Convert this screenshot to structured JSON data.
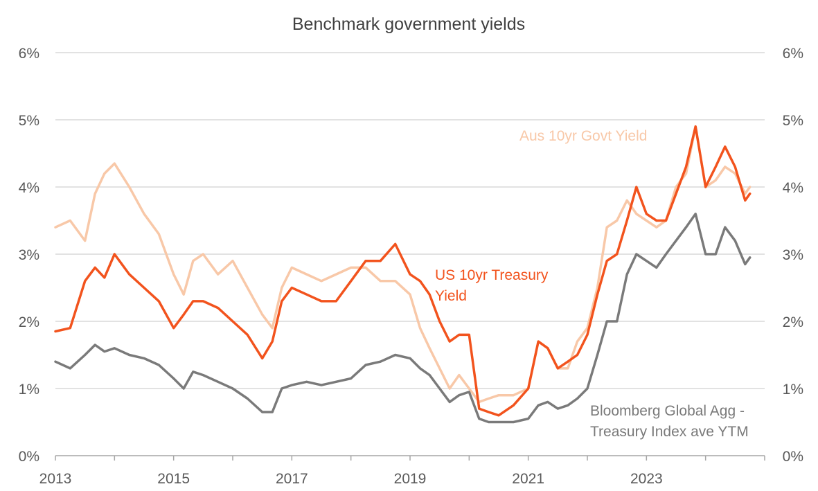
{
  "chart_data": {
    "type": "line",
    "title": "Benchmark government yields",
    "xlabel": "",
    "ylabel": "",
    "xlim": [
      2013,
      2025
    ],
    "ylim": [
      0,
      6
    ],
    "y_ticks": [
      "0%",
      "1%",
      "2%",
      "3%",
      "4%",
      "5%",
      "6%"
    ],
    "y_ticks_right": [
      "0%",
      "1%",
      "2%",
      "3%",
      "4%",
      "5%",
      "6%"
    ],
    "x_ticks": [
      "2013",
      "2015",
      "2017",
      "2019",
      "2021",
      "2023"
    ],
    "grid": true,
    "legend": "none",
    "colors": {
      "aus": "#F8C8A8",
      "us": "#F2531D",
      "global": "#7A7A7A",
      "grid": "#D9D9D9",
      "axis": "#A6A6A6"
    },
    "series": [
      {
        "name": "Aus 10yr Govt Yield",
        "x": [
          2013.0,
          2013.25,
          2013.5,
          2013.67,
          2013.83,
          2014.0,
          2014.25,
          2014.5,
          2014.75,
          2015.0,
          2015.17,
          2015.33,
          2015.5,
          2015.75,
          2016.0,
          2016.25,
          2016.5,
          2016.67,
          2016.83,
          2017.0,
          2017.25,
          2017.5,
          2017.75,
          2018.0,
          2018.25,
          2018.5,
          2018.75,
          2019.0,
          2019.17,
          2019.33,
          2019.5,
          2019.67,
          2019.83,
          2020.0,
          2020.17,
          2020.33,
          2020.5,
          2020.75,
          2021.0,
          2021.17,
          2021.33,
          2021.5,
          2021.67,
          2021.83,
          2022.0,
          2022.17,
          2022.33,
          2022.5,
          2022.67,
          2022.83,
          2023.0,
          2023.17,
          2023.33,
          2023.5,
          2023.67,
          2023.83,
          2024.0,
          2024.17,
          2024.33,
          2024.5,
          2024.67,
          2024.75
        ],
        "values": [
          3.4,
          3.5,
          3.2,
          3.9,
          4.2,
          4.35,
          4.0,
          3.6,
          3.3,
          2.7,
          2.4,
          2.9,
          3.0,
          2.7,
          2.9,
          2.5,
          2.1,
          1.9,
          2.5,
          2.8,
          2.7,
          2.6,
          2.7,
          2.8,
          2.8,
          2.6,
          2.6,
          2.4,
          1.9,
          1.6,
          1.3,
          1.0,
          1.2,
          1.0,
          0.8,
          0.85,
          0.9,
          0.9,
          1.0,
          1.7,
          1.6,
          1.3,
          1.3,
          1.7,
          1.9,
          2.5,
          3.4,
          3.5,
          3.8,
          3.6,
          3.5,
          3.4,
          3.5,
          4.0,
          4.2,
          4.9,
          4.0,
          4.1,
          4.3,
          4.2,
          3.9,
          4.0
        ]
      },
      {
        "name": "US 10yr Treasury Yield",
        "x": [
          2013.0,
          2013.25,
          2013.5,
          2013.67,
          2013.83,
          2014.0,
          2014.25,
          2014.5,
          2014.75,
          2015.0,
          2015.17,
          2015.33,
          2015.5,
          2015.75,
          2016.0,
          2016.25,
          2016.5,
          2016.67,
          2016.83,
          2017.0,
          2017.25,
          2017.5,
          2017.75,
          2018.0,
          2018.25,
          2018.5,
          2018.75,
          2019.0,
          2019.17,
          2019.33,
          2019.5,
          2019.67,
          2019.83,
          2020.0,
          2020.17,
          2020.33,
          2020.5,
          2020.75,
          2021.0,
          2021.17,
          2021.33,
          2021.5,
          2021.67,
          2021.83,
          2022.0,
          2022.17,
          2022.33,
          2022.5,
          2022.67,
          2022.83,
          2023.0,
          2023.17,
          2023.33,
          2023.5,
          2023.67,
          2023.83,
          2024.0,
          2024.17,
          2024.33,
          2024.5,
          2024.67,
          2024.75
        ],
        "values": [
          1.85,
          1.9,
          2.6,
          2.8,
          2.65,
          3.0,
          2.7,
          2.5,
          2.3,
          1.9,
          2.1,
          2.3,
          2.3,
          2.2,
          2.0,
          1.8,
          1.45,
          1.7,
          2.3,
          2.5,
          2.4,
          2.3,
          2.3,
          2.6,
          2.9,
          2.9,
          3.15,
          2.7,
          2.6,
          2.4,
          2.0,
          1.7,
          1.8,
          1.8,
          0.7,
          0.65,
          0.6,
          0.75,
          1.0,
          1.7,
          1.6,
          1.3,
          1.4,
          1.5,
          1.8,
          2.4,
          2.9,
          3.0,
          3.5,
          4.0,
          3.6,
          3.5,
          3.5,
          3.9,
          4.3,
          4.9,
          4.0,
          4.3,
          4.6,
          4.3,
          3.8,
          3.9
        ]
      },
      {
        "name": "Bloomberg Global Agg - Treasury Index ave YTM",
        "x": [
          2013.0,
          2013.25,
          2013.5,
          2013.67,
          2013.83,
          2014.0,
          2014.25,
          2014.5,
          2014.75,
          2015.0,
          2015.17,
          2015.33,
          2015.5,
          2015.75,
          2016.0,
          2016.25,
          2016.5,
          2016.67,
          2016.83,
          2017.0,
          2017.25,
          2017.5,
          2017.75,
          2018.0,
          2018.25,
          2018.5,
          2018.75,
          2019.0,
          2019.17,
          2019.33,
          2019.5,
          2019.67,
          2019.83,
          2020.0,
          2020.17,
          2020.33,
          2020.5,
          2020.75,
          2021.0,
          2021.17,
          2021.33,
          2021.5,
          2021.67,
          2021.83,
          2022.0,
          2022.17,
          2022.33,
          2022.5,
          2022.67,
          2022.83,
          2023.0,
          2023.17,
          2023.33,
          2023.5,
          2023.67,
          2023.83,
          2024.0,
          2024.17,
          2024.33,
          2024.5,
          2024.67,
          2024.75
        ],
        "values": [
          1.4,
          1.3,
          1.5,
          1.65,
          1.55,
          1.6,
          1.5,
          1.45,
          1.35,
          1.15,
          1.0,
          1.25,
          1.2,
          1.1,
          1.0,
          0.85,
          0.65,
          0.65,
          1.0,
          1.05,
          1.1,
          1.05,
          1.1,
          1.15,
          1.35,
          1.4,
          1.5,
          1.45,
          1.3,
          1.2,
          1.0,
          0.8,
          0.9,
          0.95,
          0.55,
          0.5,
          0.5,
          0.5,
          0.55,
          0.75,
          0.8,
          0.7,
          0.75,
          0.85,
          1.0,
          1.5,
          2.0,
          2.0,
          2.7,
          3.0,
          2.9,
          2.8,
          3.0,
          3.2,
          3.4,
          3.6,
          3.0,
          3.0,
          3.4,
          3.2,
          2.85,
          2.95
        ]
      }
    ],
    "annotations": [
      {
        "text": "Aus 10yr Govt Yield",
        "series": 0
      },
      {
        "text": "US 10yr Treasury",
        "series": 1
      },
      {
        "text": "Yield",
        "series": 1
      },
      {
        "text": "Bloomberg Global Agg -",
        "series": 2
      },
      {
        "text": "Treasury Index ave YTM",
        "series": 2
      }
    ]
  }
}
